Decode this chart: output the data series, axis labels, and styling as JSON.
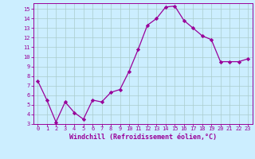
{
  "x": [
    0,
    1,
    2,
    3,
    4,
    5,
    6,
    7,
    8,
    9,
    10,
    11,
    12,
    13,
    14,
    15,
    16,
    17,
    18,
    19,
    20,
    21,
    22,
    23
  ],
  "y": [
    7.5,
    5.5,
    3.2,
    5.3,
    4.2,
    3.5,
    5.5,
    5.3,
    6.3,
    6.6,
    8.5,
    10.8,
    13.3,
    14.0,
    15.2,
    15.3,
    13.8,
    13.0,
    12.2,
    11.8,
    9.5,
    9.5,
    9.5,
    9.8
  ],
  "line_color": "#990099",
  "marker": "D",
  "marker_size": 2.2,
  "bg_color": "#cceeff",
  "grid_color": "#aacccc",
  "xlabel": "Windchill (Refroidissement éolien,°C)",
  "xlabel_color": "#990099",
  "tick_color": "#990099",
  "xlim": [
    -0.5,
    23.5
  ],
  "ylim": [
    3,
    15.6
  ],
  "yticks": [
    3,
    4,
    5,
    6,
    7,
    8,
    9,
    10,
    11,
    12,
    13,
    14,
    15
  ],
  "xticks": [
    0,
    1,
    2,
    3,
    4,
    5,
    6,
    7,
    8,
    9,
    10,
    11,
    12,
    13,
    14,
    15,
    16,
    17,
    18,
    19,
    20,
    21,
    22,
    23
  ],
  "spine_color": "#990099",
  "axis_bg_color": "#cceeff",
  "tick_fontsize": 5.0,
  "xlabel_fontsize": 6.0
}
